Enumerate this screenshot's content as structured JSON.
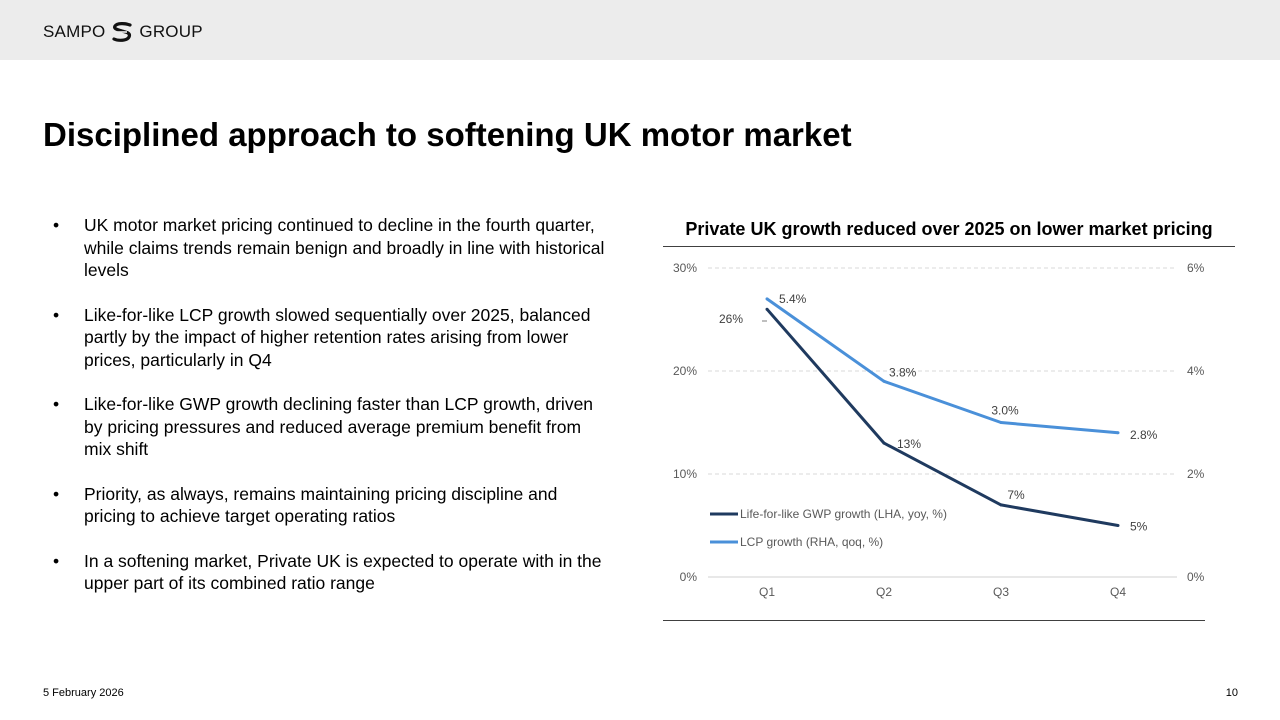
{
  "header": {
    "logo_left": "SAMPO",
    "logo_right": "GROUP",
    "logo_icon": "sampo-logo-icon"
  },
  "slide": {
    "title": "Disciplined approach to softening UK motor market",
    "bullets": [
      "UK motor market pricing continued to decline in the fourth quarter, while claims trends remain benign and broadly in line with historical levels",
      "Like-for-like LCP growth slowed sequentially over 2025, balanced partly by the impact of higher retention rates arising from lower prices, particularly in Q4",
      "Like-for-like GWP growth declining faster than LCP growth, driven by pricing pressures and reduced average premium benefit from mix shift",
      "Priority, as always, remains maintaining pricing discipline and pricing to achieve target operating ratios",
      "In a softening market, Private UK is expected to operate with in the upper part of its combined ratio range"
    ],
    "bullet_char": "•"
  },
  "footer": {
    "date": "5 February 2026",
    "page": "10"
  },
  "chart_data": {
    "type": "line",
    "title": "Private UK growth reduced over 2025 on lower market pricing",
    "categories": [
      "Q1",
      "Q2",
      "Q3",
      "Q4"
    ],
    "left_axis": {
      "ylim": [
        0,
        30
      ],
      "ticks": [
        "0%",
        "10%",
        "20%",
        "30%"
      ],
      "tick_values": [
        0,
        10,
        20,
        30
      ]
    },
    "right_axis": {
      "ylim": [
        0,
        6
      ],
      "ticks": [
        "0%",
        "2%",
        "4%",
        "6%"
      ],
      "tick_values": [
        0,
        2,
        4,
        6
      ]
    },
    "grid": true,
    "legend_position": "bottom-left",
    "series": [
      {
        "name": "Life-for-like GWP growth (LHA, yoy, %)",
        "axis": "left",
        "color": "#1f3a5f",
        "values": [
          26,
          13,
          7,
          5
        ],
        "labels": [
          "26%",
          "13%",
          "7%",
          "5%"
        ]
      },
      {
        "name": "LCP growth (RHA, qoq, %)",
        "axis": "right",
        "color": "#4a90d9",
        "values": [
          5.4,
          3.8,
          3.0,
          2.8
        ],
        "labels": [
          "5.4%",
          "3.8%",
          "3.0%",
          "2.8%"
        ]
      }
    ]
  }
}
